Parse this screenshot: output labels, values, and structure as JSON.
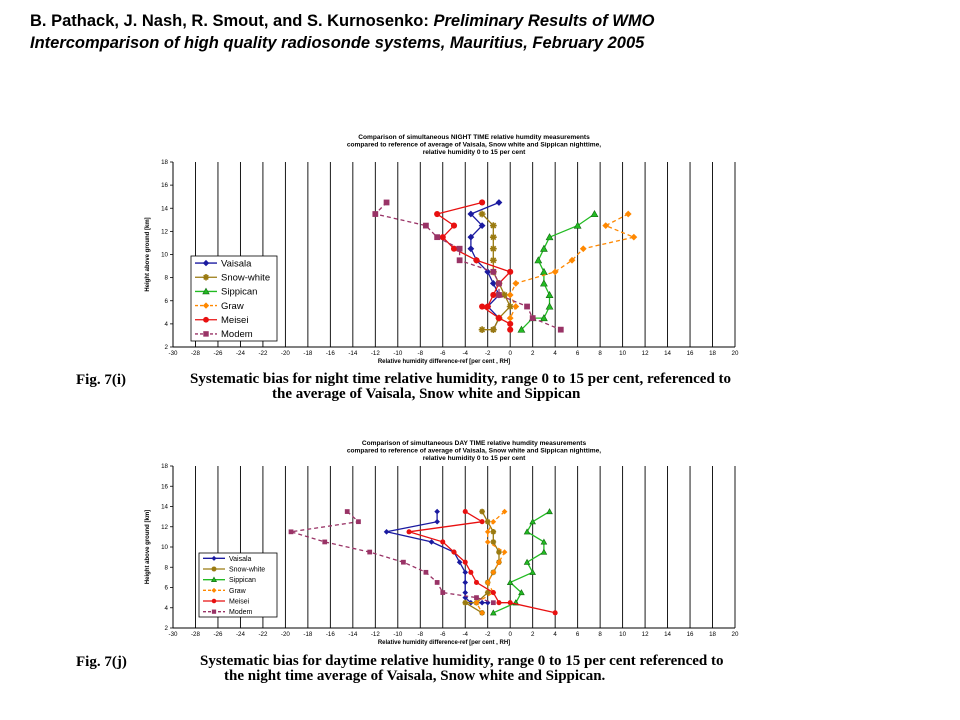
{
  "header": {
    "authors_bold_1": "B. Pathack",
    "sep1": ", ",
    "authors_bold_2": "J. Nash",
    "sep2": ", ",
    "authors_bold_3": "R. Smout",
    "sep3": ", and ",
    "authors_bold_4": "S. Kurnosenko",
    "colon": ": ",
    "title_line1": "Preliminary Results of WMO",
    "title_line2": "Intercomparison of high quality radiosonde systems, Mauritius, February 2005"
  },
  "figures": [
    {
      "label": "Fig. 7(i)",
      "caption_line1": "Systematic bias for night time relative humidity, range 0 to 15 per cent, referenced to",
      "caption_line2": "the average of Vaisala, Snow white and Sippican"
    },
    {
      "label": "Fig. 7(j)",
      "caption_line1": "Systematic bias for daytime relative humidity, range 0 to 15 per cent referenced to",
      "caption_line2": "the night time average of Vaisala, Snow white and Sippican."
    }
  ],
  "chart_data": [
    {
      "type": "line",
      "title_lines": [
        "Comparison of simultaneous NIGHT TIME relative humdity measurements",
        "compared to reference of average of Vaisala, Snow white and Sippican nighttime,",
        "relative humidity 0 to 15 per cent"
      ],
      "xlabel": "Relative humidity difference-ref   [per cent , RH]",
      "ylabel": "Height above ground   [km]",
      "xlim": [
        -30,
        20
      ],
      "ylim": [
        2,
        18
      ],
      "xticks": [
        -30,
        -28,
        -26,
        -24,
        -22,
        -20,
        -18,
        -16,
        -14,
        -12,
        -10,
        -8,
        -6,
        -4,
        -2,
        0,
        2,
        4,
        6,
        8,
        10,
        12,
        14,
        16,
        18,
        20
      ],
      "yticks": [
        2,
        4,
        6,
        8,
        10,
        12,
        14,
        16,
        18
      ],
      "grid": "vertical",
      "legend_position": "left",
      "series": [
        {
          "name": "Vaisala",
          "color": "#1a1aa0",
          "marker": "diamond",
          "dash": "solid",
          "x": [
            -1,
            -3.5,
            -2.5,
            -3.5,
            -3.5,
            -3,
            -2,
            -1.5,
            -1,
            -2,
            -1,
            -1.5
          ],
          "y": [
            14.5,
            13.5,
            12.5,
            11.5,
            10.5,
            9.5,
            8.5,
            7.5,
            6.5,
            5.5,
            4.5,
            3.5
          ]
        },
        {
          "name": "Snow-white",
          "color": "#9a7a10",
          "marker": "star",
          "dash": "solid",
          "x": [
            -2.5,
            -1.5,
            -1.5,
            -1.5,
            -1.5,
            -1.5,
            -1,
            -0.5,
            0,
            -1,
            -1.5,
            -2.5
          ],
          "y": [
            13.5,
            12.5,
            11.5,
            10.5,
            9.5,
            8.5,
            7.5,
            6.5,
            5.5,
            4.5,
            3.5,
            3.5
          ]
        },
        {
          "name": "Sippican",
          "color": "#22bb22",
          "marker": "triangle",
          "dash": "solid",
          "x": [
            7.5,
            6,
            3.5,
            3,
            2.5,
            3,
            3,
            3.5,
            3.5,
            3,
            2,
            1
          ],
          "y": [
            13.5,
            12.5,
            11.5,
            10.5,
            9.5,
            8.5,
            7.5,
            6.5,
            5.5,
            4.5,
            4.5,
            3.5
          ]
        },
        {
          "name": "Graw",
          "color": "#ff8800",
          "marker": "diamond",
          "dash": "dash",
          "x": [
            10.5,
            8.5,
            11,
            6.5,
            5.5,
            4,
            0.5,
            0,
            0.5,
            0
          ],
          "y": [
            13.5,
            12.5,
            11.5,
            10.5,
            9.5,
            8.5,
            7.5,
            6.5,
            5.5,
            4.5
          ]
        },
        {
          "name": "Meisei",
          "color": "#e81010",
          "marker": "circle",
          "dash": "solid",
          "x": [
            -2.5,
            -6.5,
            -5,
            -6,
            -5,
            -3,
            0,
            -1,
            -1.5,
            -2,
            -2.5,
            -1,
            0,
            0
          ],
          "y": [
            14.5,
            13.5,
            12.5,
            11.5,
            10.5,
            9.5,
            8.5,
            7.5,
            6.5,
            5.5,
            5.5,
            4.5,
            4,
            3.5
          ]
        },
        {
          "name": "Modem",
          "color": "#993366",
          "marker": "square",
          "dash": "dash",
          "x": [
            -11,
            -12,
            -7.5,
            -6.5,
            -4.5,
            -4.5,
            -1.5,
            -1,
            -1,
            1.5,
            2,
            4.5
          ],
          "y": [
            14.5,
            13.5,
            12.5,
            11.5,
            10.5,
            9.5,
            8.5,
            7.5,
            6.5,
            5.5,
            4.5,
            3.5
          ]
        }
      ]
    },
    {
      "type": "line",
      "title_lines": [
        "Comparison of simultaneous DAY TIME relative humdity measurements",
        "compared to reference of average of Vaisala, Snow white and Sippican nighttime,",
        "relative humidity 0 to 15 per cent"
      ],
      "xlabel": "Relative humidity difference-ref   [per cent , RH]",
      "ylabel": "Height above ground   [km]",
      "xlim": [
        -30,
        20
      ],
      "ylim": [
        2,
        18
      ],
      "xticks": [
        -30,
        -28,
        -26,
        -24,
        -22,
        -20,
        -18,
        -16,
        -14,
        -12,
        -10,
        -8,
        -6,
        -4,
        -2,
        0,
        2,
        4,
        6,
        8,
        10,
        12,
        14,
        16,
        18,
        20
      ],
      "yticks": [
        2,
        4,
        6,
        8,
        10,
        12,
        14,
        16,
        18
      ],
      "grid": "vertical",
      "legend_position": "left",
      "series": [
        {
          "name": "Vaisala",
          "color": "#1a1aa0",
          "marker": "diamond",
          "dash": "solid",
          "x": [
            -6.5,
            -6.5,
            -11,
            -7,
            -5,
            -4.5,
            -4,
            -4,
            -4,
            -4,
            -3.5,
            -2.5,
            -2
          ],
          "y": [
            13.5,
            12.5,
            11.5,
            10.5,
            9.5,
            8.5,
            7.5,
            6.5,
            5.5,
            5,
            4.5,
            4.5,
            4.5
          ]
        },
        {
          "name": "Snow-white",
          "color": "#9a7a10",
          "marker": "star",
          "dash": "solid",
          "x": [
            -2.5,
            -2,
            -1.5,
            -1.5,
            -1,
            -1,
            -1.5,
            -2,
            -2,
            -3,
            -4,
            -2.5
          ],
          "y": [
            13.5,
            12.5,
            11.5,
            10.5,
            9.5,
            8.5,
            7.5,
            6.5,
            5.5,
            4.5,
            4.5,
            3.5
          ]
        },
        {
          "name": "Sippican",
          "color": "#22bb22",
          "marker": "triangle",
          "dash": "solid",
          "x": [
            3.5,
            2,
            1.5,
            3,
            3,
            1.5,
            2,
            0,
            1,
            0.5,
            0.5,
            -1.5
          ],
          "y": [
            13.5,
            12.5,
            11.5,
            10.5,
            9.5,
            8.5,
            7.5,
            6.5,
            5.5,
            4.5,
            4.5,
            3.5
          ]
        },
        {
          "name": "Graw",
          "color": "#ff8800",
          "marker": "diamond",
          "dash": "dash",
          "x": [
            -0.5,
            -1.5,
            -2,
            -2,
            -0.5,
            -1,
            -1.5,
            -2,
            -1.5,
            -3,
            -2.5
          ],
          "y": [
            13.5,
            12.5,
            11.5,
            10.5,
            9.5,
            8.5,
            7.5,
            6.5,
            5.5,
            4.5,
            3.5
          ]
        },
        {
          "name": "Meisei",
          "color": "#e81010",
          "marker": "circle",
          "dash": "solid",
          "x": [
            -4,
            -2.5,
            -9,
            -6,
            -5,
            -4,
            -3.5,
            -3,
            -1.5,
            -1,
            0,
            4
          ],
          "y": [
            13.5,
            12.5,
            11.5,
            10.5,
            9.5,
            8.5,
            7.5,
            6.5,
            5.5,
            4.5,
            4.5,
            3.5
          ]
        },
        {
          "name": "Modem",
          "color": "#993366",
          "marker": "square",
          "dash": "dash",
          "x": [
            -14.5,
            -13.5,
            -19.5,
            -16.5,
            -12.5,
            -9.5,
            -7.5,
            -6.5,
            -6,
            -3,
            -1.5
          ],
          "y": [
            13.5,
            12.5,
            11.5,
            10.5,
            9.5,
            8.5,
            7.5,
            6.5,
            5.5,
            5,
            4.5
          ]
        }
      ]
    }
  ]
}
